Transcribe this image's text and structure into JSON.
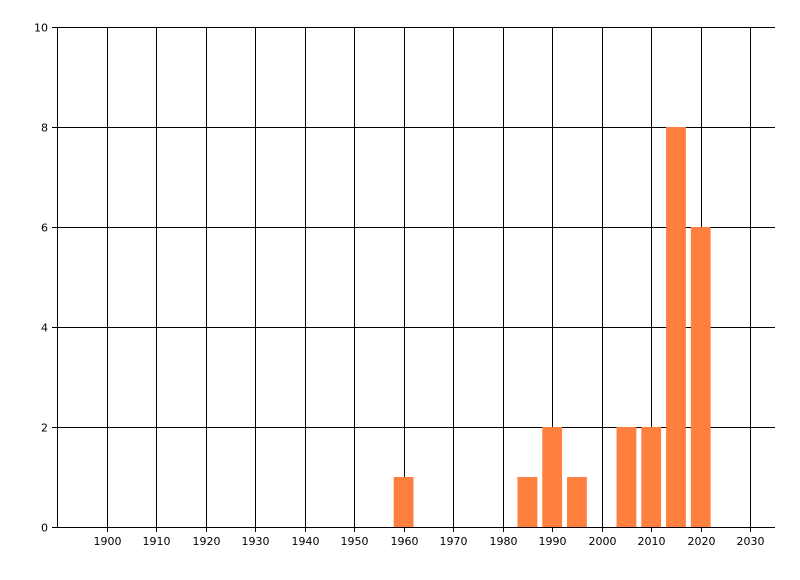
{
  "chart_data": {
    "type": "bar",
    "title": "",
    "xlabel": "",
    "ylabel": "",
    "x": [
      1960,
      1985,
      1990,
      1995,
      2005,
      2010,
      2015,
      2020
    ],
    "values": [
      1,
      1,
      2,
      1,
      2,
      2,
      8,
      6
    ],
    "bar_width_years": 4,
    "xlim": [
      1890,
      2035
    ],
    "ylim": [
      0,
      10
    ],
    "xticks": [
      1900,
      1910,
      1920,
      1930,
      1940,
      1950,
      1960,
      1970,
      1980,
      1990,
      2000,
      2010,
      2020,
      2030
    ],
    "yticks": [
      0,
      2,
      4,
      6,
      8,
      10
    ],
    "grid": true,
    "legend": "none",
    "colors": {
      "bar": "#FF7F3F",
      "grid": "#000000"
    }
  }
}
